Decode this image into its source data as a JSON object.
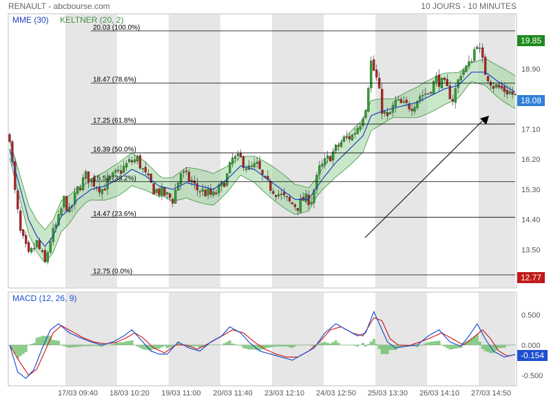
{
  "header": {
    "title": "RENAULT - abcbourse.com",
    "period": "10 JOURS - 10 MINUTES"
  },
  "colors": {
    "candle_up": "#2ca02c",
    "candle_down": "#b22222",
    "ema": "#1f3fbf",
    "keltner_fill": "#9fd39f",
    "keltner_edge": "#3f8f3f",
    "macd_line": "#1f4fd0",
    "macd_signal": "#d02020",
    "macd_hist": "#6cbf6c",
    "last_price_badge": "#2f7fd8",
    "high_badge": "#1e8a1e",
    "low_badge": "#c01818",
    "macd_badge": "#1f4fd0",
    "session_shade": "#e6e6e6"
  },
  "chart_data": [
    {
      "type": "candlestick",
      "title": "RENAULT",
      "ylim": [
        12.4,
        20.5
      ],
      "legend": [
        {
          "label": "MME (30)",
          "color": "#1f3fbf"
        },
        {
          "label": "KELTNER (20, 2)",
          "color": "#3f8f3f"
        }
      ],
      "y_ticks": [
        "18.90",
        "17.10",
        "16.20",
        "15.30",
        "14.40",
        "13.50"
      ],
      "badges": {
        "high": "19.85",
        "last": "18.08",
        "low": "12.77"
      },
      "fibonacci_levels": [
        {
          "label": "20.03 (100.0%)",
          "value": 20.03
        },
        {
          "label": "18.47 (78.6%)",
          "value": 18.47
        },
        {
          "label": "17.25 (61.8%)",
          "value": 17.25
        },
        {
          "label": "16.39 (50.0%)",
          "value": 16.39
        },
        {
          "label": "15.53 (38.2%)",
          "value": 15.53
        },
        {
          "label": "14.47 (23.6%)",
          "value": 14.47
        },
        {
          "label": "12.75 (0.0%)",
          "value": 12.75
        }
      ],
      "x_tick_labels": [
        "17/03 09:40",
        "18/03 10:20",
        "19/03 11:00",
        "20/03 11:40",
        "23/03 12:10",
        "24/03 12:50",
        "25/03 13:30",
        "26/03 14:10",
        "27/03 14:50"
      ],
      "close_path": [
        [
          0,
          16.9
        ],
        [
          2,
          15.2
        ],
        [
          4,
          14.0
        ],
        [
          7,
          13.3
        ],
        [
          10,
          13.7
        ],
        [
          13,
          13.1
        ],
        [
          15,
          13.8
        ],
        [
          18,
          14.4
        ],
        [
          20,
          15.0
        ],
        [
          22,
          14.6
        ],
        [
          25,
          15.3
        ],
        [
          28,
          15.7
        ],
        [
          31,
          15.5
        ],
        [
          34,
          15.3
        ],
        [
          37,
          15.6
        ],
        [
          40,
          15.8
        ],
        [
          44,
          16.1
        ],
        [
          47,
          16.2
        ],
        [
          50,
          15.7
        ],
        [
          53,
          15.3
        ],
        [
          56,
          15.2
        ],
        [
          60,
          15.0
        ],
        [
          63,
          15.8
        ],
        [
          66,
          15.6
        ],
        [
          69,
          15.3
        ],
        [
          72,
          15.2
        ],
        [
          75,
          15.1
        ],
        [
          78,
          15.4
        ],
        [
          80,
          15.7
        ],
        [
          82,
          16.2
        ],
        [
          85,
          16.2
        ],
        [
          88,
          15.9
        ],
        [
          91,
          16.0
        ],
        [
          94,
          15.5
        ],
        [
          97,
          15.3
        ],
        [
          100,
          15.1
        ],
        [
          103,
          14.9
        ],
        [
          106,
          14.8
        ],
        [
          108,
          15.0
        ],
        [
          111,
          15.0
        ],
        [
          114,
          15.9
        ],
        [
          117,
          16.2
        ],
        [
          120,
          16.5
        ],
        [
          123,
          16.8
        ],
        [
          126,
          16.9
        ],
        [
          129,
          17.3
        ],
        [
          131,
          17.8
        ],
        [
          133,
          19.1
        ],
        [
          135,
          18.6
        ],
        [
          137,
          17.7
        ],
        [
          139,
          17.4
        ],
        [
          142,
          17.9
        ],
        [
          145,
          17.8
        ],
        [
          148,
          17.8
        ],
        [
          151,
          18.1
        ],
        [
          154,
          18.2
        ],
        [
          157,
          18.6
        ],
        [
          160,
          18.4
        ],
        [
          163,
          18.0
        ],
        [
          166,
          18.8
        ],
        [
          169,
          19.0
        ],
        [
          172,
          19.7
        ],
        [
          175,
          18.8
        ],
        [
          178,
          18.4
        ],
        [
          181,
          18.3
        ],
        [
          184,
          18.2
        ],
        [
          186,
          18.08
        ]
      ],
      "ema_path": [
        [
          0,
          16.5
        ],
        [
          3,
          15.6
        ],
        [
          7,
          14.4
        ],
        [
          10,
          13.9
        ],
        [
          13,
          13.6
        ],
        [
          16,
          13.9
        ],
        [
          19,
          14.5
        ],
        [
          22,
          14.7
        ],
        [
          25,
          15.0
        ],
        [
          30,
          15.3
        ],
        [
          35,
          15.4
        ],
        [
          40,
          15.6
        ],
        [
          45,
          15.9
        ],
        [
          50,
          15.7
        ],
        [
          55,
          15.4
        ],
        [
          60,
          15.3
        ],
        [
          65,
          15.5
        ],
        [
          70,
          15.4
        ],
        [
          75,
          15.3
        ],
        [
          80,
          15.6
        ],
        [
          85,
          16.0
        ],
        [
          90,
          15.9
        ],
        [
          95,
          15.6
        ],
        [
          100,
          15.3
        ],
        [
          105,
          15.0
        ],
        [
          110,
          15.0
        ],
        [
          115,
          15.6
        ],
        [
          120,
          16.1
        ],
        [
          125,
          16.5
        ],
        [
          130,
          16.9
        ],
        [
          133,
          17.5
        ],
        [
          136,
          17.6
        ],
        [
          140,
          17.7
        ],
        [
          145,
          17.8
        ],
        [
          150,
          17.9
        ],
        [
          155,
          18.1
        ],
        [
          160,
          18.3
        ],
        [
          165,
          18.4
        ],
        [
          170,
          18.8
        ],
        [
          175,
          18.8
        ],
        [
          180,
          18.5
        ],
        [
          186,
          18.2
        ]
      ],
      "keltner_width": 0.45
    },
    {
      "type": "line",
      "title": "MACD (12, 26, 9)",
      "ylim": [
        -0.65,
        0.85
      ],
      "y_ticks": [
        "0.500",
        "0.000",
        "-0.500"
      ],
      "badge": "-0.154",
      "macd_path": [
        [
          0,
          0.0
        ],
        [
          3,
          -0.45
        ],
        [
          6,
          -0.55
        ],
        [
          9,
          -0.4
        ],
        [
          12,
          -0.05
        ],
        [
          15,
          0.25
        ],
        [
          18,
          0.35
        ],
        [
          22,
          0.2
        ],
        [
          26,
          0.12
        ],
        [
          30,
          0.05
        ],
        [
          34,
          0.0
        ],
        [
          38,
          0.05
        ],
        [
          42,
          0.15
        ],
        [
          45,
          0.25
        ],
        [
          48,
          0.1
        ],
        [
          52,
          -0.1
        ],
        [
          55,
          -0.15
        ],
        [
          58,
          -0.15
        ],
        [
          62,
          0.05
        ],
        [
          66,
          -0.05
        ],
        [
          70,
          -0.1
        ],
        [
          74,
          0.05
        ],
        [
          78,
          0.15
        ],
        [
          81,
          0.3
        ],
        [
          85,
          0.2
        ],
        [
          88,
          0.05
        ],
        [
          92,
          -0.1
        ],
        [
          96,
          -0.15
        ],
        [
          100,
          -0.2
        ],
        [
          104,
          -0.25
        ],
        [
          108,
          -0.15
        ],
        [
          112,
          -0.05
        ],
        [
          116,
          0.2
        ],
        [
          120,
          0.35
        ],
        [
          124,
          0.25
        ],
        [
          128,
          0.15
        ],
        [
          131,
          0.2
        ],
        [
          134,
          0.55
        ],
        [
          136,
          0.35
        ],
        [
          139,
          0.05
        ],
        [
          142,
          -0.05
        ],
        [
          146,
          -0.02
        ],
        [
          150,
          0.0
        ],
        [
          154,
          0.15
        ],
        [
          158,
          0.25
        ],
        [
          162,
          0.05
        ],
        [
          166,
          -0.02
        ],
        [
          169,
          0.15
        ],
        [
          172,
          0.35
        ],
        [
          175,
          0.1
        ],
        [
          178,
          -0.1
        ],
        [
          182,
          -0.2
        ],
        [
          186,
          -0.154
        ]
      ],
      "signal_path": [
        [
          0,
          0.0
        ],
        [
          4,
          -0.3
        ],
        [
          7,
          -0.5
        ],
        [
          10,
          -0.4
        ],
        [
          13,
          -0.1
        ],
        [
          16,
          0.2
        ],
        [
          19,
          0.32
        ],
        [
          23,
          0.22
        ],
        [
          27,
          0.12
        ],
        [
          31,
          0.05
        ],
        [
          35,
          0.02
        ],
        [
          39,
          0.04
        ],
        [
          43,
          0.12
        ],
        [
          46,
          0.2
        ],
        [
          49,
          0.12
        ],
        [
          53,
          -0.05
        ],
        [
          57,
          -0.13
        ],
        [
          61,
          0.0
        ],
        [
          65,
          0.0
        ],
        [
          69,
          -0.07
        ],
        [
          73,
          0.02
        ],
        [
          77,
          0.12
        ],
        [
          82,
          0.25
        ],
        [
          86,
          0.2
        ],
        [
          90,
          0.05
        ],
        [
          94,
          -0.07
        ],
        [
          98,
          -0.15
        ],
        [
          102,
          -0.2
        ],
        [
          106,
          -0.2
        ],
        [
          110,
          -0.1
        ],
        [
          114,
          0.05
        ],
        [
          118,
          0.25
        ],
        [
          122,
          0.3
        ],
        [
          126,
          0.2
        ],
        [
          130,
          0.15
        ],
        [
          134,
          0.45
        ],
        [
          137,
          0.4
        ],
        [
          140,
          0.1
        ],
        [
          143,
          0.0
        ],
        [
          147,
          -0.01
        ],
        [
          151,
          0.05
        ],
        [
          155,
          0.12
        ],
        [
          159,
          0.2
        ],
        [
          163,
          0.1
        ],
        [
          167,
          0.0
        ],
        [
          170,
          0.1
        ],
        [
          174,
          0.25
        ],
        [
          177,
          0.1
        ],
        [
          180,
          -0.1
        ],
        [
          183,
          -0.18
        ],
        [
          186,
          -0.16
        ]
      ]
    }
  ]
}
